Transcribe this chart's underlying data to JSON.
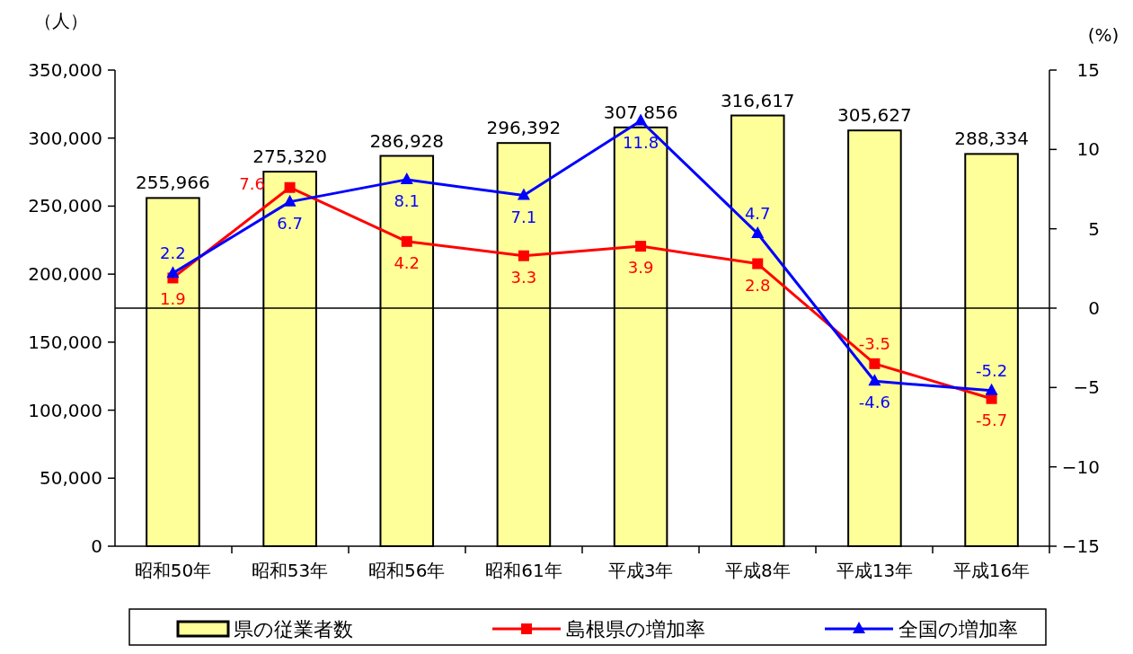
{
  "chart_data": {
    "type": "bar",
    "ylabel": "（人）",
    "y2label": "(%)",
    "categories": [
      "昭和50年",
      "昭和53年",
      "昭和56年",
      "昭和61年",
      "平成3年",
      "平成8年",
      "平成13年",
      "平成16年"
    ],
    "series": [
      {
        "name": "県の従業者数",
        "color": "#ffff99",
        "values": [
          255966,
          275320,
          286928,
          296392,
          307856,
          316617,
          305627,
          288334
        ],
        "value_labels": [
          "255,966",
          "275,320",
          "286,928",
          "296,392",
          "307,856",
          "316,617",
          "305,627",
          "288,334"
        ]
      },
      {
        "name": "島根県の増加率",
        "type": "line",
        "axis": "y2",
        "color": "#ff0000",
        "marker": "square",
        "values": [
          1.9,
          7.6,
          4.2,
          3.3,
          3.9,
          2.8,
          -3.5,
          -5.7
        ]
      },
      {
        "name": "全国の増加率",
        "type": "line",
        "axis": "y2",
        "color": "#0000ff",
        "marker": "triangle",
        "values": [
          2.2,
          6.7,
          8.1,
          7.1,
          11.8,
          4.7,
          -4.6,
          -5.2
        ]
      }
    ],
    "ylim": [
      0,
      350000
    ],
    "yticks": [
      {
        "value": 0,
        "label": "0"
      },
      {
        "value": 50000,
        "label": "50,000"
      },
      {
        "value": 100000,
        "label": "100,000"
      },
      {
        "value": 150000,
        "label": "150,000"
      },
      {
        "value": 200000,
        "label": "200,000"
      },
      {
        "value": 250000,
        "label": "250,000"
      },
      {
        "value": 300000,
        "label": "300,000"
      },
      {
        "value": 350000,
        "label": "350,000"
      }
    ],
    "y2lim": [
      -15,
      15
    ],
    "y2ticks": [
      {
        "value": -15,
        "label": "−15"
      },
      {
        "value": -10,
        "label": "−10"
      },
      {
        "value": -5,
        "label": "−5"
      },
      0,
      5,
      10,
      15
    ],
    "ref_lines": [
      {
        "axis": "y2",
        "value": 0,
        "color": "#000000"
      }
    ],
    "data_labels": true,
    "grid": false,
    "legend": "bottom"
  }
}
